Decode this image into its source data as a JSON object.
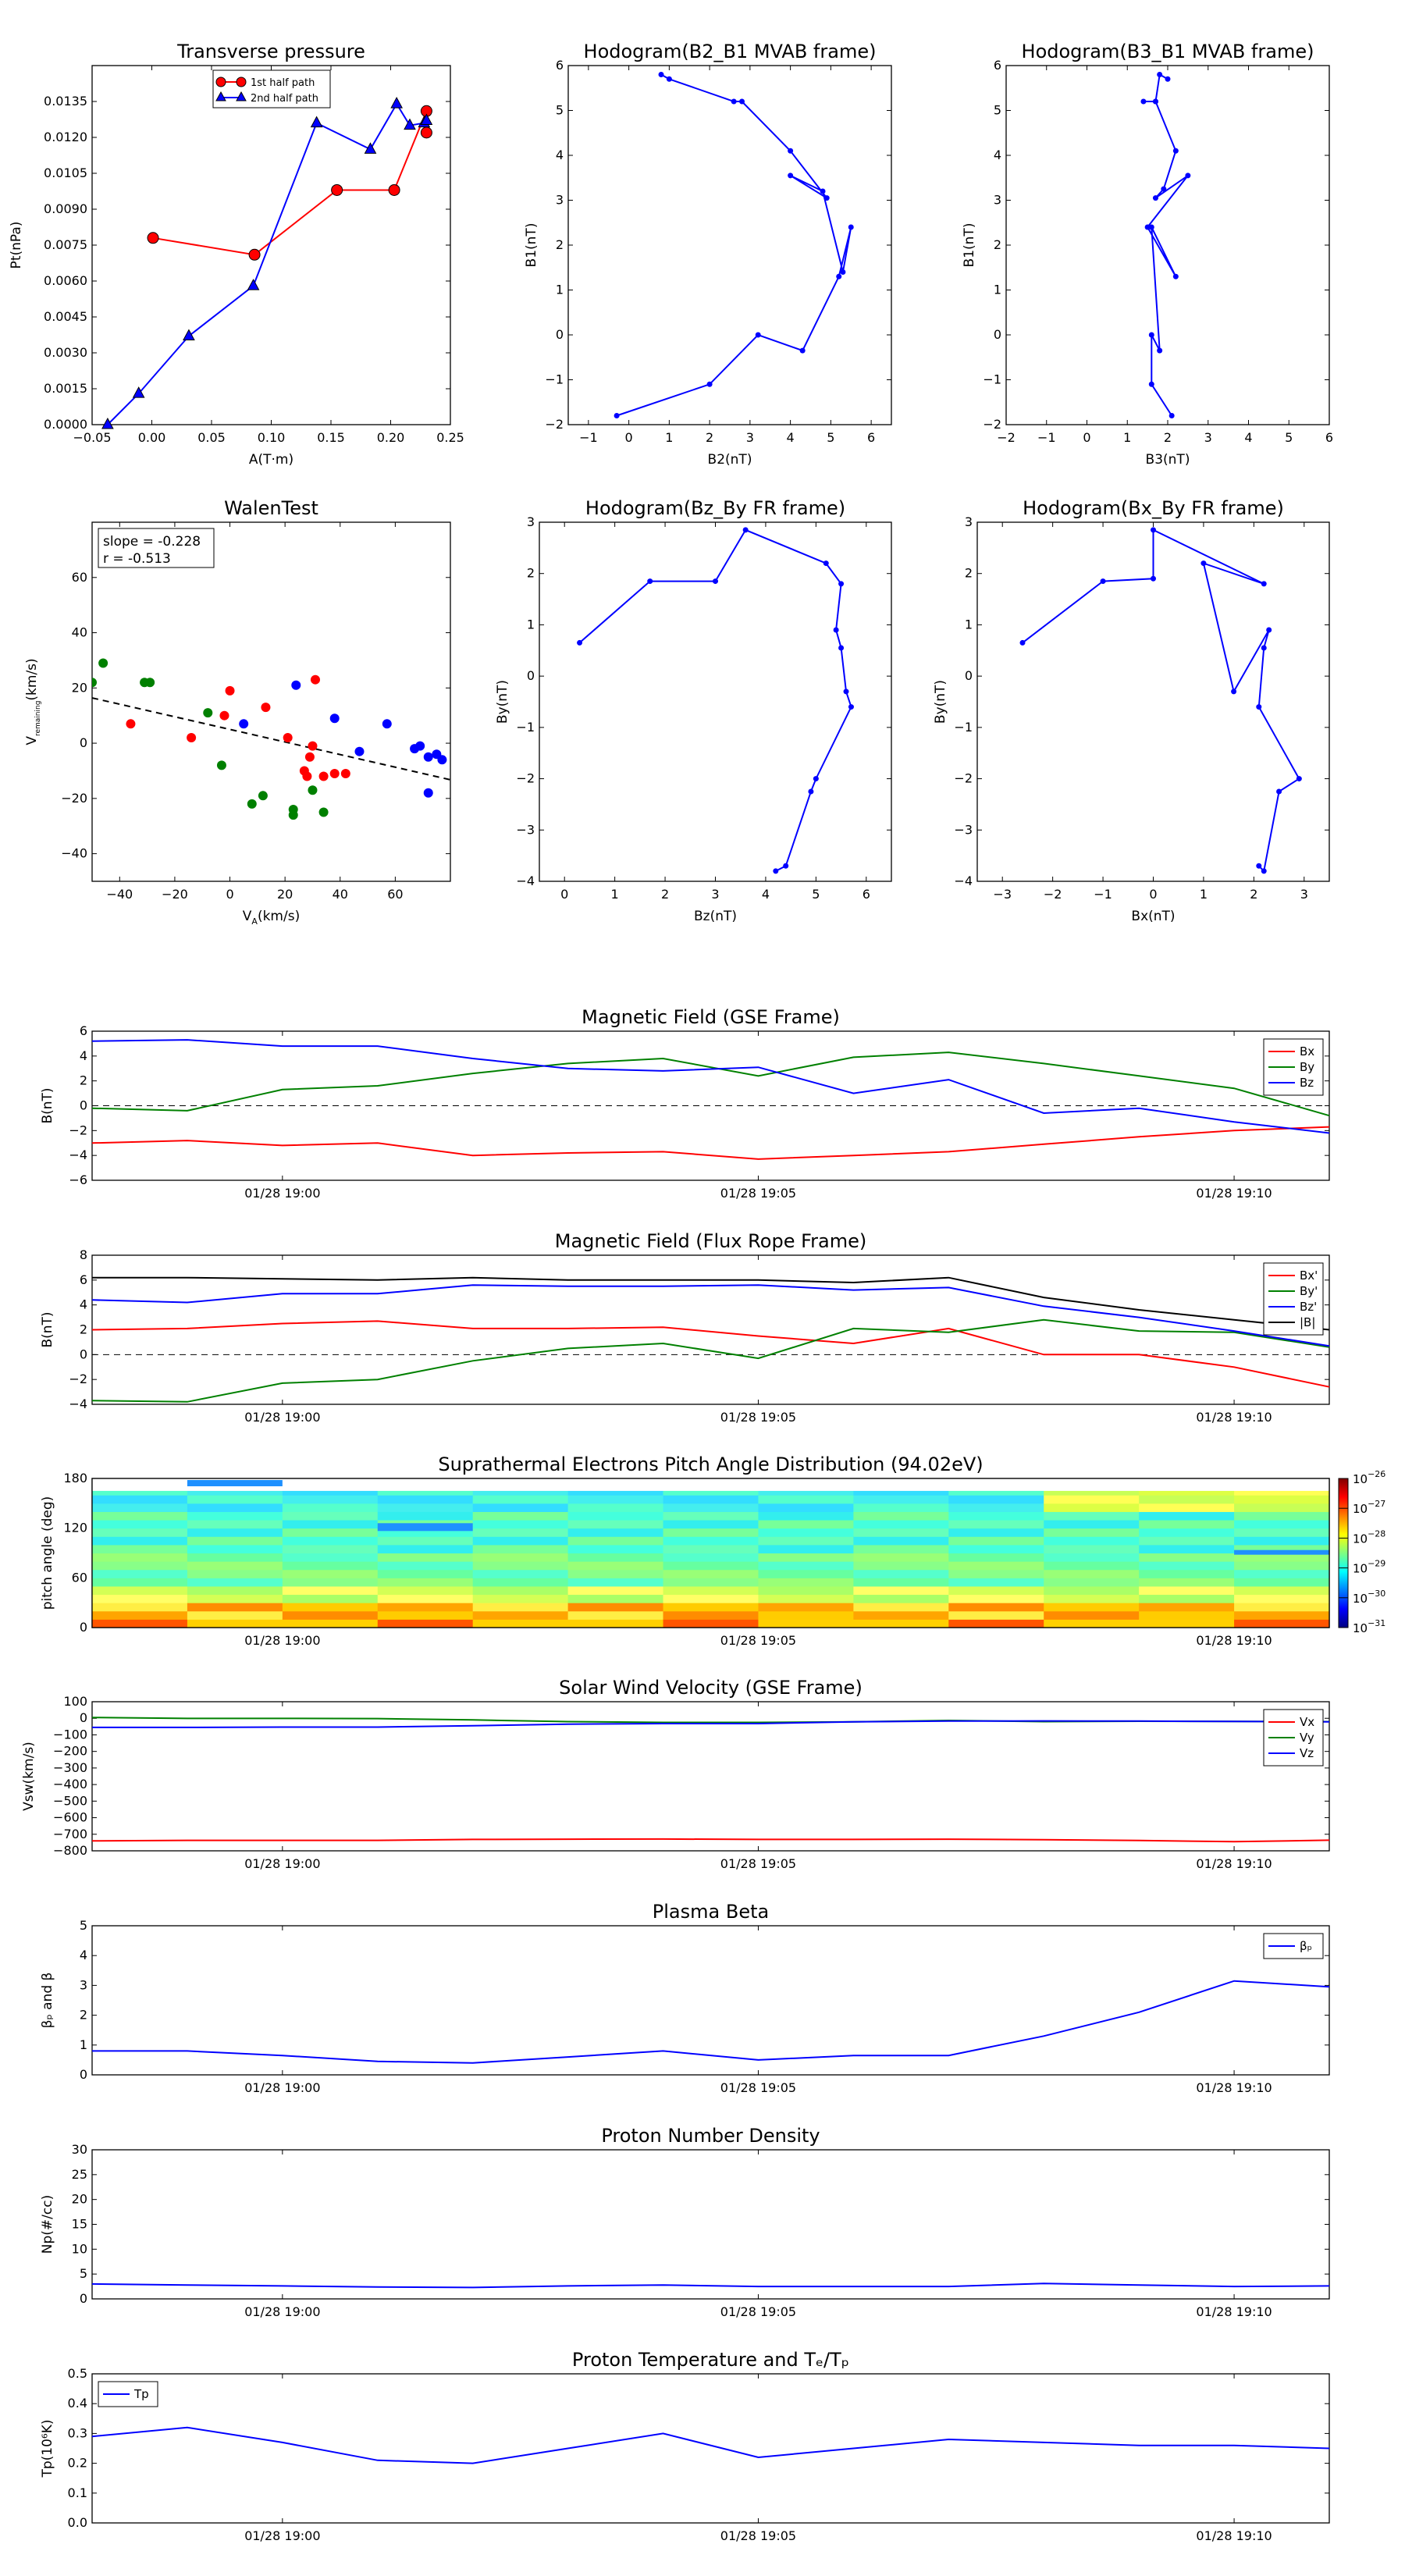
{
  "figure": {
    "background": "#ffffff"
  },
  "chart_data": [
    {
      "id": "tp",
      "type": "line",
      "title": "Transverse pressure",
      "xlabel": "A(T·m)",
      "ylabel": "Pt(nPa)",
      "xlim": [
        -0.05,
        0.25
      ],
      "ylim": [
        0,
        0.015
      ],
      "xticks": [
        "−0.05",
        "0.00",
        "0.05",
        "0.10",
        "0.15",
        "0.20",
        "0.25"
      ],
      "yticks": [
        "0.0000",
        "0.0015",
        "0.0030",
        "0.0045",
        "0.0060",
        "0.0075",
        "0.0090",
        "0.0105",
        "0.0120",
        "0.0135"
      ],
      "legend": {
        "position": "upper-center"
      },
      "series": [
        {
          "name": "1st half path",
          "color": "#ff0000",
          "marker": "circle",
          "x": [
            0.001,
            0.086,
            0.155,
            0.203,
            0.23,
            0.23
          ],
          "y": [
            0.0078,
            0.0071,
            0.0098,
            0.0098,
            0.0131,
            0.0122
          ]
        },
        {
          "name": "2nd half path",
          "color": "#0000ff",
          "marker": "triangle",
          "x": [
            -0.037,
            -0.011,
            0.031,
            0.085,
            0.138,
            0.183,
            0.205,
            0.216,
            0.228,
            0.23
          ],
          "y": [
            0.0,
            0.0013,
            0.0037,
            0.0058,
            0.0126,
            0.0115,
            0.0134,
            0.0125,
            0.0126,
            0.0127
          ]
        }
      ]
    },
    {
      "id": "h_b2b1",
      "type": "line",
      "title": "Hodogram(B2_B1 MVAB frame)",
      "xlabel": "B2(nT)",
      "ylabel": "B1(nT)",
      "xlim": [
        -1.5,
        6.5
      ],
      "ylim": [
        -2,
        6
      ],
      "xticks": [
        "−1",
        "0",
        "1",
        "2",
        "3",
        "4",
        "5",
        "6"
      ],
      "yticks": [
        "−2",
        "−1",
        "0",
        "1",
        "2",
        "3",
        "4",
        "5",
        "6"
      ],
      "series": [
        {
          "name": "",
          "color": "#0000ff",
          "marker": "dot",
          "x": [
            -0.3,
            2.0,
            3.2,
            4.3,
            5.2,
            5.5,
            5.3,
            4.8,
            4.0,
            4.9,
            4.0,
            2.8,
            2.6,
            1.0,
            0.8
          ],
          "y": [
            -1.8,
            -1.1,
            0.0,
            -0.35,
            1.3,
            2.4,
            1.4,
            3.2,
            3.55,
            3.05,
            4.1,
            5.2,
            5.2,
            5.7,
            5.8
          ]
        }
      ]
    },
    {
      "id": "h_b3b1",
      "type": "line",
      "title": "Hodogram(B3_B1 MVAB frame)",
      "xlabel": "B3(nT)",
      "ylabel": "B1(nT)",
      "xlim": [
        -2,
        6
      ],
      "ylim": [
        -2,
        6
      ],
      "xticks": [
        "−2",
        "−1",
        "0",
        "1",
        "2",
        "3",
        "4",
        "5",
        "6"
      ],
      "yticks": [
        "−2",
        "−1",
        "0",
        "1",
        "2",
        "3",
        "4",
        "5",
        "6"
      ],
      "series": [
        {
          "name": "",
          "color": "#0000ff",
          "marker": "dot",
          "x": [
            2.1,
            1.6,
            1.6,
            1.8,
            1.6,
            2.2,
            1.5,
            2.5,
            1.7,
            1.9,
            2.2,
            1.7,
            1.4,
            1.7,
            1.8,
            2.0
          ],
          "y": [
            -1.8,
            -1.1,
            0.0,
            -0.35,
            2.4,
            1.3,
            2.4,
            3.55,
            3.05,
            3.25,
            4.1,
            5.2,
            5.2,
            5.2,
            5.8,
            5.7
          ]
        }
      ]
    },
    {
      "id": "walen",
      "type": "scatter",
      "title": "WalenTest",
      "xlabel": "Vₐ(km/s)",
      "ylabel": "Vₜₗₐₙₛₐₗₜₗₐₙₛₗ(km/s)",
      "ylabel_main": "V",
      "ylabel_sub": "remaining",
      "ylabel_unit": "(km/s)",
      "xlabel_main": "V",
      "xlabel_sub": "A",
      "xlabel_unit": "(km/s)",
      "xlim": [
        -50,
        80
      ],
      "ylim": [
        -50,
        80
      ],
      "xticks": [
        "−40",
        "−20",
        "0",
        "20",
        "40",
        "60"
      ],
      "yticks": [
        "−40",
        "−20",
        "0",
        "20",
        "40",
        "60"
      ],
      "annotation": [
        "slope = -0.228",
        "r = -0.513"
      ],
      "fit": {
        "slope": -0.228,
        "intercept": 5.0
      },
      "series": [
        {
          "name": "",
          "color": "#008000",
          "x": [
            -50,
            -46,
            -31,
            -29,
            -8,
            -3,
            8,
            12,
            23,
            23,
            30,
            34
          ],
          "y": [
            22,
            29,
            22,
            22,
            11,
            -8,
            -22,
            -19,
            -24,
            -26,
            -17,
            -25
          ]
        },
        {
          "name": "",
          "color": "#ff0000",
          "x": [
            -36,
            -14,
            -2,
            0,
            13,
            21,
            27,
            28,
            29,
            30,
            31,
            34,
            38,
            42
          ],
          "y": [
            7,
            2,
            10,
            19,
            13,
            2,
            -10,
            -12,
            -5,
            -1,
            23,
            -12,
            -11,
            -11
          ]
        },
        {
          "name": "",
          "color": "#0000ff",
          "x": [
            5,
            24,
            38,
            47,
            57,
            67,
            69,
            72,
            75,
            77,
            72
          ],
          "y": [
            7,
            21,
            9,
            -3,
            7,
            -2,
            -1,
            -5,
            -4,
            -6,
            -18
          ]
        }
      ]
    },
    {
      "id": "h_bzby",
      "type": "line",
      "title": "Hodogram(Bz_By FR frame)",
      "xlabel": "Bz(nT)",
      "ylabel": "By(nT)",
      "xlim": [
        -0.5,
        6.5
      ],
      "ylim": [
        -4,
        3
      ],
      "xticks": [
        "0",
        "1",
        "2",
        "3",
        "4",
        "5",
        "6"
      ],
      "yticks": [
        "−4",
        "−3",
        "−2",
        "−1",
        "0",
        "1",
        "2",
        "3"
      ],
      "series": [
        {
          "name": "",
          "color": "#0000ff",
          "marker": "dot",
          "x": [
            0.3,
            1.7,
            3.0,
            3.6,
            5.2,
            5.5,
            5.4,
            5.5,
            5.6,
            5.7,
            5.0,
            4.9,
            4.4,
            4.2
          ],
          "y": [
            0.65,
            1.85,
            1.85,
            2.85,
            2.2,
            1.8,
            0.9,
            0.55,
            -0.3,
            -0.6,
            -2.0,
            -2.25,
            -3.7,
            -3.8
          ]
        }
      ]
    },
    {
      "id": "h_bxby",
      "type": "line",
      "title": "Hodogram(Bx_By FR frame)",
      "xlabel": "Bx(nT)",
      "ylabel": "By(nT)",
      "xlim": [
        -3.5,
        3.5
      ],
      "ylim": [
        -4,
        3
      ],
      "xticks": [
        "−3",
        "−2",
        "−1",
        "0",
        "1",
        "2",
        "3"
      ],
      "yticks": [
        "−4",
        "−3",
        "−2",
        "−1",
        "0",
        "1",
        "2",
        "3"
      ],
      "series": [
        {
          "name": "",
          "color": "#0000ff",
          "marker": "dot",
          "x": [
            -2.6,
            -1.0,
            0.0,
            0.0,
            2.2,
            1.0,
            1.6,
            2.3,
            2.2,
            2.1,
            2.9,
            2.5,
            2.2,
            2.1
          ],
          "y": [
            0.65,
            1.85,
            1.9,
            2.85,
            1.8,
            2.2,
            -0.3,
            0.9,
            0.55,
            -0.6,
            -2.0,
            -2.25,
            -3.8,
            -3.7
          ]
        }
      ]
    },
    {
      "id": "mag_gse",
      "type": "line",
      "title": "Magnetic Field (GSE Frame)",
      "ylabel": "B(nT)",
      "xlim": [
        0,
        13
      ],
      "ylim": [
        -6,
        6
      ],
      "xtick_pos": [
        2,
        7,
        12
      ],
      "xticks": [
        "01/28 19:00",
        "01/28 19:05",
        "01/28 19:10"
      ],
      "yticks": [
        "−6",
        "−4",
        "−2",
        "0",
        "2",
        "4",
        "6"
      ],
      "zero_line": true,
      "legend": {
        "position": "right"
      },
      "x": [
        0,
        1,
        2,
        3,
        4,
        5,
        6,
        7,
        8,
        9,
        10,
        11,
        12,
        13
      ],
      "series": [
        {
          "name": "Bx",
          "color": "#ff0000",
          "values": [
            -3.0,
            -2.8,
            -3.2,
            -3.0,
            -4.0,
            -3.8,
            -3.7,
            -4.3,
            -4.0,
            -3.7,
            -3.1,
            -2.5,
            -2.0,
            -1.7
          ]
        },
        {
          "name": "By",
          "color": "#008000",
          "values": [
            -0.2,
            -0.4,
            1.3,
            1.6,
            2.6,
            3.4,
            3.8,
            2.4,
            3.9,
            4.3,
            3.4,
            2.4,
            1.4,
            -0.8
          ]
        },
        {
          "name": "Bz",
          "color": "#0000ff",
          "values": [
            5.2,
            5.3,
            4.8,
            4.8,
            3.8,
            3.0,
            2.8,
            3.1,
            1.0,
            2.1,
            -0.6,
            -0.2,
            -1.3,
            -2.2
          ]
        }
      ]
    },
    {
      "id": "mag_fr",
      "type": "line",
      "title": "Magnetic Field (Flux Rope Frame)",
      "ylabel": "B(nT)",
      "xlim": [
        0,
        13
      ],
      "ylim": [
        -4,
        8
      ],
      "xtick_pos": [
        2,
        7,
        12
      ],
      "xticks": [
        "01/28 19:00",
        "01/28 19:05",
        "01/28 19:10"
      ],
      "yticks": [
        "−4",
        "−2",
        "0",
        "2",
        "4",
        "6",
        "8"
      ],
      "zero_line": true,
      "legend": {
        "position": "right"
      },
      "x": [
        0,
        1,
        2,
        3,
        4,
        5,
        6,
        7,
        8,
        9,
        10,
        11,
        12,
        13
      ],
      "series": [
        {
          "name": "Bx'",
          "color": "#ff0000",
          "values": [
            2.0,
            2.1,
            2.5,
            2.7,
            2.1,
            2.1,
            2.2,
            1.5,
            0.9,
            2.1,
            0.0,
            0.0,
            -1.0,
            -2.6
          ]
        },
        {
          "name": "By'",
          "color": "#008000",
          "values": [
            -3.7,
            -3.8,
            -2.3,
            -2.0,
            -0.5,
            0.5,
            0.9,
            -0.3,
            2.1,
            1.8,
            2.8,
            1.9,
            1.8,
            0.6
          ]
        },
        {
          "name": "Bz'",
          "color": "#0000ff",
          "values": [
            4.4,
            4.2,
            4.9,
            4.9,
            5.6,
            5.5,
            5.5,
            5.6,
            5.2,
            5.4,
            3.9,
            3.0,
            1.9,
            0.7
          ]
        },
        {
          "name": "|B|",
          "color": "#000000",
          "values": [
            6.2,
            6.2,
            6.1,
            6.0,
            6.2,
            6.0,
            6.0,
            6.0,
            5.8,
            6.2,
            4.6,
            3.6,
            2.8,
            2.0
          ]
        }
      ]
    },
    {
      "id": "pad",
      "type": "heatmap",
      "title": "Suprathermal Electrons Pitch Angle Distribution (94.02eV)",
      "ylabel": "pitch angle (deg)",
      "xlim": [
        0,
        13
      ],
      "ylim": [
        0,
        180
      ],
      "xtick_pos": [
        2,
        7,
        12
      ],
      "xticks": [
        "01/28 19:00",
        "01/28 19:05",
        "01/28 19:10"
      ],
      "yticks": [
        "0",
        "60",
        "120",
        "180"
      ],
      "colorbar": {
        "ticks": [
          "10",
          "10",
          "10",
          "10",
          "10",
          "10"
        ],
        "exponents": [
          "−26",
          "−27",
          "−28",
          "−29",
          "−30",
          "−31"
        ]
      }
    },
    {
      "id": "vsw",
      "type": "line",
      "title": "Solar Wind Velocity (GSE Frame)",
      "ylabel": "Vsw(km/s)",
      "xlim": [
        0,
        13
      ],
      "ylim": [
        -800,
        100
      ],
      "xtick_pos": [
        2,
        7,
        12
      ],
      "xticks": [
        "01/28 19:00",
        "01/28 19:05",
        "01/28 19:10"
      ],
      "yticks": [
        "−800",
        "−700",
        "−600",
        "−500",
        "−400",
        "−300",
        "−200",
        "−100",
        "0",
        "100"
      ],
      "legend": {
        "position": "right"
      },
      "x": [
        0,
        1,
        2,
        3,
        4,
        5,
        6,
        7,
        8,
        9,
        10,
        11,
        12,
        13
      ],
      "series": [
        {
          "name": "Vx",
          "color": "#ff0000",
          "values": [
            -740,
            -737,
            -737,
            -737,
            -731,
            -730,
            -729,
            -731,
            -731,
            -730,
            -733,
            -738,
            -745,
            -736
          ]
        },
        {
          "name": "Vy",
          "color": "#008000",
          "values": [
            5,
            -1,
            -1,
            -2,
            -10,
            -20,
            -25,
            -25,
            -21,
            -13,
            -20,
            -18,
            -19,
            -20
          ]
        },
        {
          "name": "Vz",
          "color": "#0000ff",
          "values": [
            -55,
            -55,
            -53,
            -53,
            -45,
            -35,
            -32,
            -32,
            -21,
            -17,
            -16,
            -17,
            -19,
            -21
          ]
        }
      ]
    },
    {
      "id": "beta",
      "type": "line",
      "title": "Plasma Beta",
      "ylabel": "βₚ and β",
      "xlim": [
        0,
        13
      ],
      "ylim": [
        0,
        5
      ],
      "xtick_pos": [
        2,
        7,
        12
      ],
      "xticks": [
        "01/28 19:00",
        "01/28 19:05",
        "01/28 19:10"
      ],
      "yticks": [
        "0",
        "1",
        "2",
        "3",
        "4",
        "5"
      ],
      "legend": {
        "position": "upper-right"
      },
      "x": [
        0,
        1,
        2,
        3,
        4,
        5,
        6,
        7,
        8,
        9,
        10,
        11,
        12,
        13
      ],
      "series": [
        {
          "name": "βₚ",
          "color": "#0000ff",
          "values": [
            0.8,
            0.8,
            0.65,
            0.45,
            0.4,
            0.6,
            0.8,
            0.5,
            0.65,
            0.65,
            1.3,
            2.1,
            3.15,
            2.95
          ]
        }
      ]
    },
    {
      "id": "np",
      "type": "line",
      "title": "Proton Number Density",
      "ylabel": "Np(#/cc)",
      "xlim": [
        0,
        13
      ],
      "ylim": [
        0,
        30
      ],
      "xtick_pos": [
        2,
        7,
        12
      ],
      "xticks": [
        "01/28 19:00",
        "01/28 19:05",
        "01/28 19:10"
      ],
      "yticks": [
        "0",
        "5",
        "10",
        "15",
        "20",
        "25",
        "30"
      ],
      "x": [
        0,
        1,
        2,
        3,
        4,
        5,
        6,
        7,
        8,
        9,
        10,
        11,
        12,
        13
      ],
      "series": [
        {
          "name": "",
          "color": "#0000ff",
          "values": [
            3.0,
            2.8,
            2.6,
            2.4,
            2.3,
            2.6,
            2.8,
            2.5,
            2.5,
            2.5,
            3.1,
            2.8,
            2.5,
            2.6
          ]
        }
      ]
    },
    {
      "id": "tp_temp",
      "type": "line",
      "title": "Proton Temperature and Tₑ/Tₚ",
      "ylabel": "Tp(10⁶K)",
      "xlim": [
        0,
        13
      ],
      "ylim": [
        0,
        0.5
      ],
      "xtick_pos": [
        2,
        7,
        12
      ],
      "xticks": [
        "01/28 19:00",
        "01/28 19:05",
        "01/28 19:10"
      ],
      "yticks": [
        "0.0",
        "0.1",
        "0.2",
        "0.3",
        "0.4",
        "0.5"
      ],
      "legend": {
        "position": "upper-left"
      },
      "x": [
        0,
        1,
        2,
        3,
        4,
        5,
        6,
        7,
        8,
        9,
        10,
        11,
        12,
        13
      ],
      "series": [
        {
          "name": "Tp",
          "color": "#0000ff",
          "values": [
            0.29,
            0.32,
            0.27,
            0.21,
            0.2,
            0.25,
            0.3,
            0.22,
            0.25,
            0.28,
            0.27,
            0.26,
            0.26,
            0.25
          ]
        }
      ]
    }
  ]
}
